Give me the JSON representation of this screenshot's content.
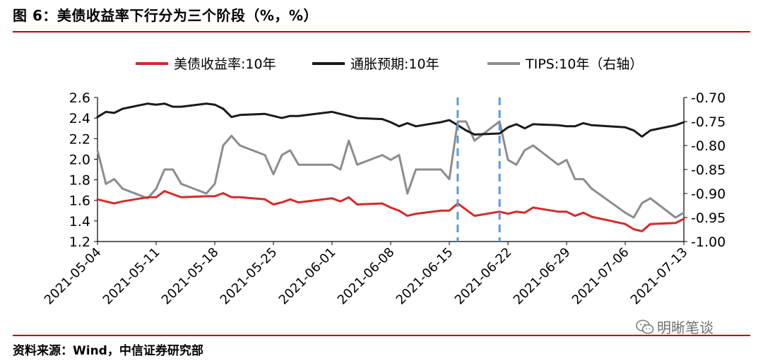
{
  "title": "图 6：美债收益率下行分为三个阶段（%，%）",
  "source": "资料来源：Wind，中信证券研究部",
  "watermark": "明晰笔谈",
  "chart_data": {
    "type": "line",
    "legend_position": "top",
    "series": [
      {
        "name": "美债收益率:10年",
        "axis": "left",
        "color": "#d42a2a",
        "points": [
          [
            "2021-05-04",
            1.61
          ],
          [
            "2021-05-05",
            1.59
          ],
          [
            "2021-05-06",
            1.57
          ],
          [
            "2021-05-07",
            1.59
          ],
          [
            "2021-05-10",
            1.63
          ],
          [
            "2021-05-11",
            1.63
          ],
          [
            "2021-05-12",
            1.69
          ],
          [
            "2021-05-13",
            1.66
          ],
          [
            "2021-05-14",
            1.63
          ],
          [
            "2021-05-17",
            1.64
          ],
          [
            "2021-05-18",
            1.64
          ],
          [
            "2021-05-19",
            1.67
          ],
          [
            "2021-05-20",
            1.63
          ],
          [
            "2021-05-21",
            1.63
          ],
          [
            "2021-05-24",
            1.61
          ],
          [
            "2021-05-25",
            1.56
          ],
          [
            "2021-05-26",
            1.58
          ],
          [
            "2021-05-27",
            1.61
          ],
          [
            "2021-05-28",
            1.58
          ],
          [
            "2021-06-01",
            1.62
          ],
          [
            "2021-06-02",
            1.59
          ],
          [
            "2021-06-03",
            1.63
          ],
          [
            "2021-06-04",
            1.56
          ],
          [
            "2021-06-07",
            1.57
          ],
          [
            "2021-06-08",
            1.53
          ],
          [
            "2021-06-09",
            1.5
          ],
          [
            "2021-06-10",
            1.45
          ],
          [
            "2021-06-11",
            1.47
          ],
          [
            "2021-06-14",
            1.5
          ],
          [
            "2021-06-15",
            1.5
          ],
          [
            "2021-06-16",
            1.57
          ],
          [
            "2021-06-17",
            1.51
          ],
          [
            "2021-06-18",
            1.45
          ],
          [
            "2021-06-21",
            1.49
          ],
          [
            "2021-06-22",
            1.47
          ],
          [
            "2021-06-23",
            1.49
          ],
          [
            "2021-06-24",
            1.48
          ],
          [
            "2021-06-25",
            1.53
          ],
          [
            "2021-06-28",
            1.49
          ],
          [
            "2021-06-29",
            1.49
          ],
          [
            "2021-06-30",
            1.45
          ],
          [
            "2021-07-01",
            1.48
          ],
          [
            "2021-07-02",
            1.44
          ],
          [
            "2021-07-06",
            1.37
          ],
          [
            "2021-07-07",
            1.32
          ],
          [
            "2021-07-08",
            1.3
          ],
          [
            "2021-07-09",
            1.37
          ],
          [
            "2021-07-12",
            1.38
          ],
          [
            "2021-07-13",
            1.42
          ]
        ]
      },
      {
        "name": "通胀预期:10年",
        "axis": "left",
        "color": "#1a1a1a",
        "points": [
          [
            "2021-05-04",
            2.41
          ],
          [
            "2021-05-05",
            2.46
          ],
          [
            "2021-05-06",
            2.45
          ],
          [
            "2021-05-07",
            2.49
          ],
          [
            "2021-05-10",
            2.54
          ],
          [
            "2021-05-11",
            2.53
          ],
          [
            "2021-05-12",
            2.54
          ],
          [
            "2021-05-13",
            2.51
          ],
          [
            "2021-05-14",
            2.51
          ],
          [
            "2021-05-17",
            2.54
          ],
          [
            "2021-05-18",
            2.53
          ],
          [
            "2021-05-19",
            2.49
          ],
          [
            "2021-05-20",
            2.41
          ],
          [
            "2021-05-21",
            2.43
          ],
          [
            "2021-05-24",
            2.44
          ],
          [
            "2021-05-25",
            2.42
          ],
          [
            "2021-05-26",
            2.4
          ],
          [
            "2021-05-27",
            2.42
          ],
          [
            "2021-05-28",
            2.42
          ],
          [
            "2021-06-01",
            2.46
          ],
          [
            "2021-06-02",
            2.44
          ],
          [
            "2021-06-03",
            2.42
          ],
          [
            "2021-06-04",
            2.4
          ],
          [
            "2021-06-07",
            2.39
          ],
          [
            "2021-06-08",
            2.36
          ],
          [
            "2021-06-09",
            2.32
          ],
          [
            "2021-06-10",
            2.35
          ],
          [
            "2021-06-11",
            2.32
          ],
          [
            "2021-06-14",
            2.36
          ],
          [
            "2021-06-15",
            2.38
          ],
          [
            "2021-06-16",
            2.33
          ],
          [
            "2021-06-17",
            2.28
          ],
          [
            "2021-06-18",
            2.24
          ],
          [
            "2021-06-21",
            2.25
          ],
          [
            "2021-06-22",
            2.31
          ],
          [
            "2021-06-23",
            2.34
          ],
          [
            "2021-06-24",
            2.3
          ],
          [
            "2021-06-25",
            2.34
          ],
          [
            "2021-06-28",
            2.33
          ],
          [
            "2021-06-29",
            2.32
          ],
          [
            "2021-06-30",
            2.32
          ],
          [
            "2021-07-01",
            2.35
          ],
          [
            "2021-07-02",
            2.33
          ],
          [
            "2021-07-06",
            2.31
          ],
          [
            "2021-07-07",
            2.28
          ],
          [
            "2021-07-08",
            2.22
          ],
          [
            "2021-07-09",
            2.28
          ],
          [
            "2021-07-12",
            2.33
          ],
          [
            "2021-07-13",
            2.36
          ]
        ]
      },
      {
        "name": "TIPS:10年（右轴）",
        "axis": "right",
        "color": "#8c8c8c",
        "points": [
          [
            "2021-05-04",
            -0.81
          ],
          [
            "2021-05-05",
            -0.88
          ],
          [
            "2021-05-06",
            -0.87
          ],
          [
            "2021-05-07",
            -0.89
          ],
          [
            "2021-05-10",
            -0.91
          ],
          [
            "2021-05-11",
            -0.89
          ],
          [
            "2021-05-12",
            -0.85
          ],
          [
            "2021-05-13",
            -0.85
          ],
          [
            "2021-05-14",
            -0.88
          ],
          [
            "2021-05-17",
            -0.9
          ],
          [
            "2021-05-18",
            -0.88
          ],
          [
            "2021-05-19",
            -0.8
          ],
          [
            "2021-05-20",
            -0.78
          ],
          [
            "2021-05-21",
            -0.8
          ],
          [
            "2021-05-24",
            -0.82
          ],
          [
            "2021-05-25",
            -0.86
          ],
          [
            "2021-05-26",
            -0.82
          ],
          [
            "2021-05-27",
            -0.81
          ],
          [
            "2021-05-28",
            -0.84
          ],
          [
            "2021-06-01",
            -0.84
          ],
          [
            "2021-06-02",
            -0.85
          ],
          [
            "2021-06-03",
            -0.79
          ],
          [
            "2021-06-04",
            -0.84
          ],
          [
            "2021-06-07",
            -0.82
          ],
          [
            "2021-06-08",
            -0.83
          ],
          [
            "2021-06-09",
            -0.82
          ],
          [
            "2021-06-10",
            -0.9
          ],
          [
            "2021-06-11",
            -0.85
          ],
          [
            "2021-06-14",
            -0.85
          ],
          [
            "2021-06-15",
            -0.87
          ],
          [
            "2021-06-16",
            -0.75
          ],
          [
            "2021-06-17",
            -0.75
          ],
          [
            "2021-06-18",
            -0.79
          ],
          [
            "2021-06-21",
            -0.75
          ],
          [
            "2021-06-22",
            -0.83
          ],
          [
            "2021-06-23",
            -0.84
          ],
          [
            "2021-06-24",
            -0.81
          ],
          [
            "2021-06-25",
            -0.8
          ],
          [
            "2021-06-28",
            -0.84
          ],
          [
            "2021-06-29",
            -0.83
          ],
          [
            "2021-06-30",
            -0.87
          ],
          [
            "2021-07-01",
            -0.87
          ],
          [
            "2021-07-02",
            -0.89
          ],
          [
            "2021-07-06",
            -0.94
          ],
          [
            "2021-07-07",
            -0.95
          ],
          [
            "2021-07-08",
            -0.92
          ],
          [
            "2021-07-09",
            -0.91
          ],
          [
            "2021-07-12",
            -0.95
          ],
          [
            "2021-07-13",
            -0.94
          ]
        ]
      }
    ],
    "y_left": {
      "min": 1.2,
      "max": 2.6,
      "ticks": [
        "1.2",
        "1.4",
        "1.6",
        "1.8",
        "2.0",
        "2.2",
        "2.4",
        "2.6"
      ]
    },
    "y_right": {
      "min": -1.0,
      "max": -0.7,
      "ticks": [
        "-1.00",
        "-0.95",
        "-0.90",
        "-0.85",
        "-0.80",
        "-0.75",
        "-0.70"
      ]
    },
    "x_ticks": [
      "2021-05-04",
      "2021-05-11",
      "2021-05-18",
      "2021-05-25",
      "2021-06-01",
      "2021-06-08",
      "2021-06-15",
      "2021-06-22",
      "2021-06-29",
      "2021-07-06",
      "2021-07-13"
    ],
    "annotations": [
      {
        "type": "vertical-dashed-line",
        "x": "2021-06-16",
        "color": "#5b9bd5"
      },
      {
        "type": "vertical-dashed-line",
        "x": "2021-06-21",
        "color": "#5b9bd5"
      }
    ],
    "grid": false
  }
}
